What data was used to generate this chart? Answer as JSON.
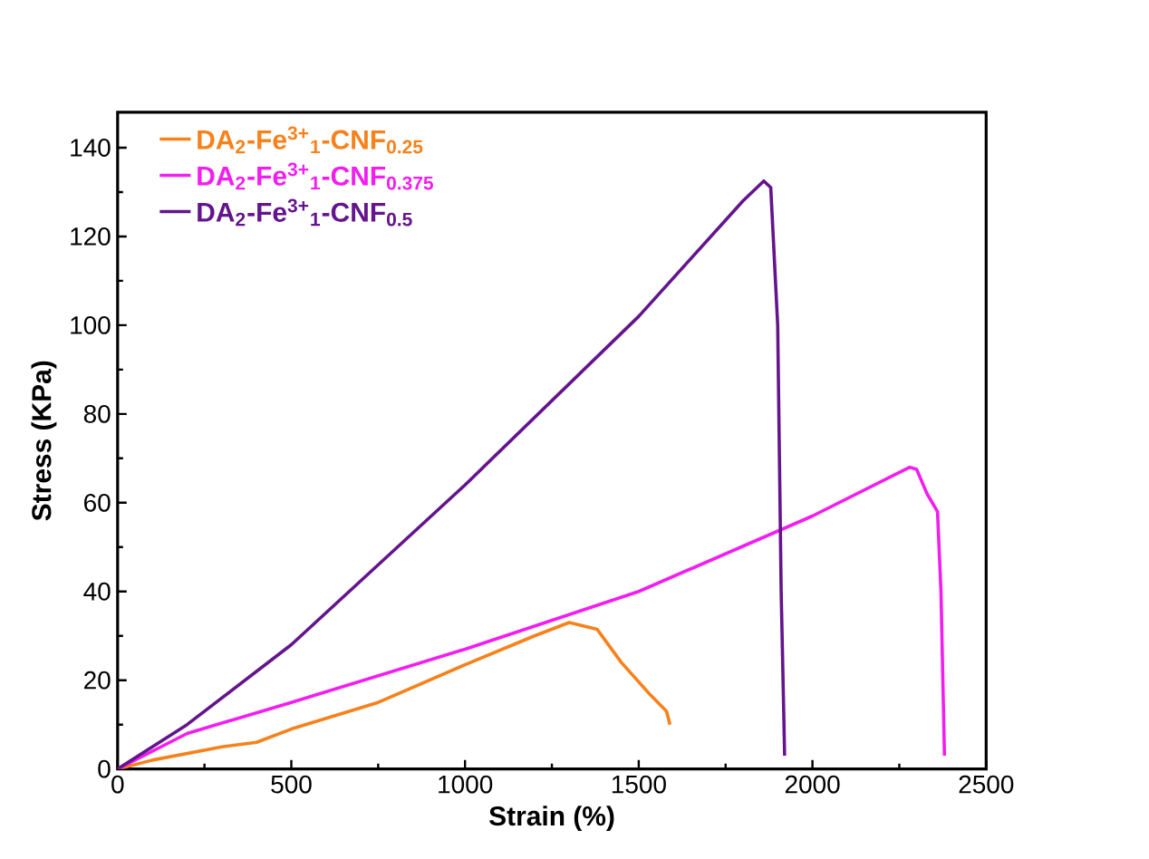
{
  "chart_data": {
    "type": "line",
    "xlabel": "Strain (%)",
    "ylabel": "Stress (KPa)",
    "xlim": [
      0,
      2500
    ],
    "ylim": [
      0,
      148
    ],
    "xticks": [
      0,
      500,
      1000,
      1500,
      2000,
      2500
    ],
    "yticks": [
      0,
      20,
      40,
      60,
      80,
      100,
      120,
      140
    ],
    "grid": false,
    "legend": "top left",
    "marker": "none",
    "line_style": "solid",
    "series": [
      {
        "name": "DA$_{2}$-Fe$^{3+}$$_{1}$-CNF$_{0.25}$",
        "color": "#f7811a",
        "x": [
          0,
          100,
          300,
          400,
          500,
          750,
          1000,
          1200,
          1300,
          1380,
          1450,
          1530,
          1580,
          1590
        ],
        "values": [
          0,
          2,
          5,
          6,
          9,
          15,
          23.5,
          30,
          33,
          31.5,
          24,
          17,
          13,
          10
        ]
      },
      {
        "name": "DA$_{2}$-Fe$^{3+}$$_{1}$-CNF$_{0.375}$",
        "color": "#f21df0",
        "x": [
          0,
          200,
          500,
          1000,
          1500,
          2000,
          2280,
          2300,
          2330,
          2360,
          2370,
          2380
        ],
        "values": [
          0,
          8,
          15,
          27,
          40,
          57,
          68,
          67.5,
          62,
          58,
          40,
          3
        ]
      },
      {
        "name": "DA$_{2}$-Fe$^{3+}$$_{1}$-CNF$_{0.5}$",
        "color": "#64148c",
        "x": [
          0,
          200,
          500,
          1000,
          1500,
          1800,
          1860,
          1880,
          1900,
          1910,
          1920
        ],
        "values": [
          0,
          10,
          28,
          64,
          102,
          128,
          132.5,
          131,
          100,
          40,
          3
        ]
      }
    ]
  }
}
